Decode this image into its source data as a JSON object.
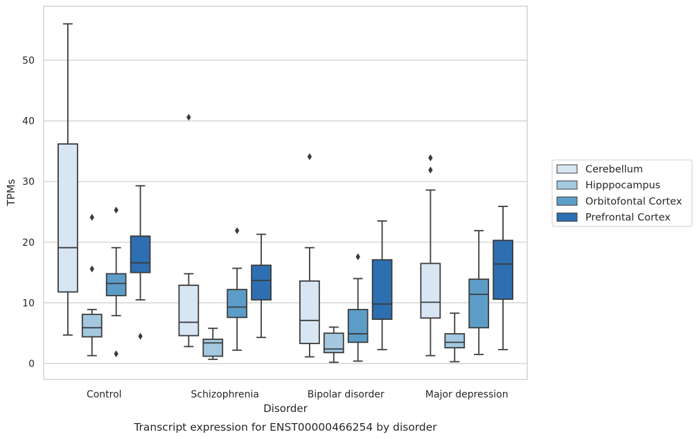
{
  "chart_data": {
    "type": "box",
    "xlabel": "Disorder",
    "ylabel": "TPMs",
    "caption": "Transcript expression for ENST00000466254 by disorder",
    "ylim": [
      -2.4,
      59
    ],
    "yticks": [
      0,
      10,
      20,
      30,
      40,
      50
    ],
    "grid": "horizontal",
    "legend_position": "right-outside",
    "categories": [
      "Control",
      "Schizophrenia",
      "Bipolar disorder",
      "Major depression"
    ],
    "series": [
      {
        "name": "Cerebellum",
        "color": "#d8e6f4",
        "boxes": [
          {
            "whislo": 4.7,
            "q1": 11.8,
            "med": 19.1,
            "q3": 36.2,
            "whishi": 56.0,
            "fliers": []
          },
          {
            "whislo": 2.8,
            "q1": 4.6,
            "med": 6.8,
            "q3": 12.9,
            "whishi": 14.8,
            "fliers": [
              40.6
            ]
          },
          {
            "whislo": 1.1,
            "q1": 3.3,
            "med": 7.1,
            "q3": 13.6,
            "whishi": 19.1,
            "fliers": [
              34.1
            ]
          },
          {
            "whislo": 1.3,
            "q1": 7.5,
            "med": 10.1,
            "q3": 16.5,
            "whishi": 28.6,
            "fliers": [
              31.9,
              33.9
            ]
          }
        ]
      },
      {
        "name": "Hipppocampus",
        "color": "#a3c8e0",
        "boxes": [
          {
            "whislo": 1.3,
            "q1": 4.4,
            "med": 5.9,
            "q3": 8.1,
            "whishi": 8.9,
            "fliers": [
              15.6,
              24.1
            ]
          },
          {
            "whislo": 0.7,
            "q1": 1.2,
            "med": 3.4,
            "q3": 4.0,
            "whishi": 5.8,
            "fliers": []
          },
          {
            "whislo": 0.2,
            "q1": 1.8,
            "med": 2.4,
            "q3": 5.0,
            "whishi": 6.0,
            "fliers": []
          },
          {
            "whislo": 0.3,
            "q1": 2.6,
            "med": 3.5,
            "q3": 4.9,
            "whishi": 8.3,
            "fliers": []
          }
        ]
      },
      {
        "name": "Orbitofontal Cortex",
        "color": "#5c9dc8",
        "boxes": [
          {
            "whislo": 7.9,
            "q1": 11.2,
            "med": 13.2,
            "q3": 14.8,
            "whishi": 19.1,
            "fliers": [
              1.6,
              25.3
            ]
          },
          {
            "whislo": 2.2,
            "q1": 7.6,
            "med": 9.3,
            "q3": 12.2,
            "whishi": 15.7,
            "fliers": [
              21.9
            ]
          },
          {
            "whislo": 0.4,
            "q1": 3.5,
            "med": 4.9,
            "q3": 8.9,
            "whishi": 14.0,
            "fliers": [
              17.6
            ]
          },
          {
            "whislo": 1.5,
            "q1": 5.9,
            "med": 11.4,
            "q3": 13.9,
            "whishi": 21.9,
            "fliers": []
          }
        ]
      },
      {
        "name": "Prefrontal Cortex",
        "color": "#2d6fb1",
        "boxes": [
          {
            "whislo": 10.5,
            "q1": 15.0,
            "med": 16.6,
            "q3": 21.0,
            "whishi": 29.3,
            "fliers": [
              4.5
            ]
          },
          {
            "whislo": 4.3,
            "q1": 10.5,
            "med": 13.7,
            "q3": 16.2,
            "whishi": 21.3,
            "fliers": []
          },
          {
            "whislo": 2.3,
            "q1": 7.3,
            "med": 9.8,
            "q3": 17.1,
            "whishi": 23.5,
            "fliers": []
          },
          {
            "whislo": 2.3,
            "q1": 10.6,
            "med": 16.4,
            "q3": 20.3,
            "whishi": 25.9,
            "fliers": []
          }
        ]
      }
    ]
  }
}
